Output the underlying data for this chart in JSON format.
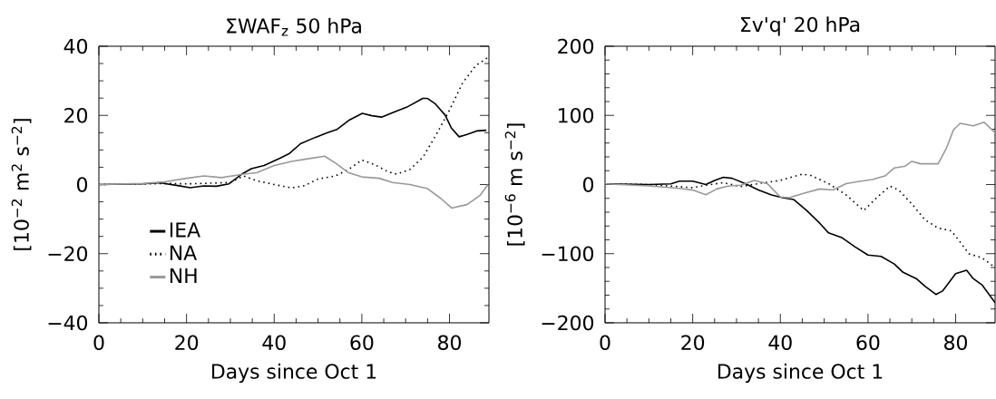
{
  "chart_data": [
    {
      "type": "line",
      "title": "ΣWAF$_{z}$ 50 hPa",
      "xlabel": "Days since Oct 1",
      "ylabel": "[10$^{−2}$ m$^{2}$ s$^{−2}$]",
      "xlim": [
        0,
        89
      ],
      "ylim": [
        -40,
        40
      ],
      "xticks": [
        0,
        20,
        40,
        60,
        80
      ],
      "yticks": [
        {
          "value": -40,
          "label": "−40"
        },
        {
          "value": -20,
          "label": "−20"
        },
        0,
        20,
        40
      ],
      "legend": "bottom left",
      "series": [
        {
          "name": "IEA",
          "color": "#000000",
          "line_style": "solid",
          "x": [
            0,
            10,
            13.8,
            18,
            20.8,
            24,
            26.8,
            29.7,
            32.6,
            34.8,
            37.7,
            41.3,
            43.5,
            46,
            49.3,
            52.2,
            54.3,
            57.2,
            60.1,
            62.3,
            64.5,
            67.4,
            70.3,
            73.9,
            75,
            76.8,
            79,
            80.4,
            82.2,
            84,
            86.2,
            88.4
          ],
          "values": [
            0,
            0.2,
            0.5,
            -0.3,
            -0.9,
            -0.4,
            -0.5,
            0.2,
            3,
            4.6,
            5.5,
            7.6,
            9,
            11.8,
            13.6,
            15,
            15.9,
            18.7,
            20.6,
            19.9,
            19.5,
            21,
            22.4,
            24.9,
            24.9,
            23.3,
            20.1,
            16.4,
            13.8,
            14.5,
            15.5,
            15.7
          ]
        },
        {
          "name": "NA",
          "color": "#000000",
          "line_style": "dotted",
          "x": [
            0,
            16,
            20,
            26,
            30,
            33,
            36,
            40,
            44,
            47,
            50,
            54,
            57,
            60,
            63,
            66,
            68,
            71,
            74,
            77,
            80,
            83,
            86,
            88.8
          ],
          "values": [
            0,
            0.3,
            0.2,
            0.4,
            0.6,
            2.5,
            1.1,
            0,
            -1,
            -0.3,
            1.6,
            2.5,
            4.4,
            7.1,
            5.7,
            3.7,
            3,
            4.4,
            8,
            14.5,
            21.5,
            29.4,
            34.4,
            36.8
          ]
        },
        {
          "name": "NH",
          "color": "#999999",
          "line_style": "solid",
          "x": [
            0,
            10,
            15,
            20,
            24,
            28,
            33,
            36,
            40,
            44,
            47,
            50,
            51.5,
            54,
            57,
            60,
            64,
            67,
            71,
            75,
            78,
            80.5,
            84,
            87,
            88.8
          ],
          "values": [
            0,
            0.3,
            0.8,
            1.8,
            2.5,
            2,
            3,
            3.4,
            5.5,
            6.7,
            7.3,
            7.9,
            8.2,
            6.2,
            3.4,
            2.2,
            1.8,
            0.6,
            0,
            -1.2,
            -4,
            -6.8,
            -5.8,
            -3.1,
            0
          ]
        }
      ]
    },
    {
      "type": "line",
      "title": "Σv'q' 20 hPa",
      "xlabel": "Days since Oct 1",
      "ylabel": "[10$^{−6}$ m s$^{−2}$]",
      "xlim": [
        0,
        89
      ],
      "ylim": [
        -200,
        200
      ],
      "xticks": [
        0,
        20,
        40,
        60,
        80
      ],
      "yticks": [
        {
          "value": -200,
          "label": "−200"
        },
        {
          "value": -100,
          "label": "−100"
        },
        0,
        100,
        200
      ],
      "series": [
        {
          "color": "#000000",
          "line_style": "solid",
          "x": [
            0,
            10,
            15,
            17,
            20,
            23,
            25,
            27,
            29,
            32,
            35,
            38,
            40.5,
            43,
            46,
            49,
            51,
            54,
            57,
            60,
            63,
            66,
            68,
            71,
            73,
            75.5,
            77,
            80,
            82.5,
            84,
            86,
            89
          ],
          "values": [
            1,
            0,
            1,
            5,
            5,
            0,
            6,
            10.5,
            9,
            1.4,
            -8,
            -15,
            -19,
            -21.6,
            -37.6,
            -56,
            -70,
            -76.6,
            -90,
            -102,
            -104,
            -115,
            -127,
            -136,
            -147,
            -159,
            -154,
            -129,
            -124,
            -136,
            -145,
            -171
          ]
        },
        {
          "color": "#000000",
          "line_style": "dotted",
          "x": [
            0,
            10,
            20,
            23,
            27,
            31,
            35,
            40,
            45,
            47,
            51,
            55,
            59,
            62,
            65,
            67,
            70,
            73,
            76,
            79,
            81,
            83,
            86,
            89
          ],
          "values": [
            1,
            0,
            -4.6,
            -1,
            2.7,
            -3,
            1.4,
            6,
            15,
            13,
            1.4,
            -15,
            -37.6,
            -19,
            -2.3,
            -8,
            -28,
            -51,
            -63,
            -67,
            -83,
            -100,
            -106,
            -120
          ]
        },
        {
          "color": "#999999",
          "line_style": "solid",
          "x": [
            0,
            10,
            17,
            20,
            23,
            25.5,
            28,
            31,
            34,
            37,
            40,
            42,
            46,
            49,
            52,
            55,
            58,
            61,
            64,
            66,
            68.5,
            70,
            72,
            76,
            78,
            79.5,
            81,
            84,
            86.5,
            89
          ],
          "values": [
            1,
            -2,
            -5.5,
            -8,
            -14.7,
            -6.4,
            -2.3,
            -1,
            6,
            1.4,
            -18,
            -19,
            -11.5,
            -6.4,
            -7.8,
            1.4,
            4.6,
            7.3,
            12.8,
            24,
            26.6,
            33.5,
            30,
            30,
            54,
            79,
            88.5,
            85,
            90,
            75
          ]
        }
      ]
    }
  ]
}
